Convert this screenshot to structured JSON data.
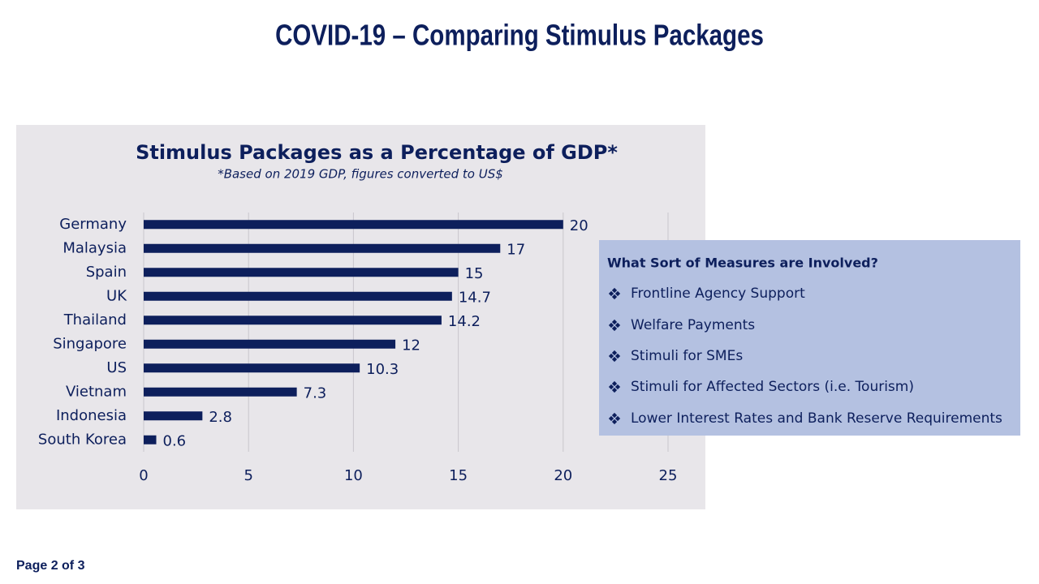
{
  "slide": {
    "title": "COVID-19 – Comparing Stimulus Packages",
    "page": "Page 2 of 3"
  },
  "chart_data": {
    "type": "bar",
    "orientation": "horizontal",
    "title": "Stimulus Packages as a Percentage of GDP*",
    "subtitle": "*Based on 2019 GDP, figures converted to US$",
    "categories": [
      "Germany",
      "Malaysia",
      "Spain",
      "UK",
      "Thailand",
      "Singapore",
      "US",
      "Vietnam",
      "Indonesia",
      "South Korea"
    ],
    "values": [
      20,
      17,
      15,
      14.7,
      14.2,
      12,
      10.3,
      7.3,
      2.8,
      0.6
    ],
    "color": "#0d1f5c",
    "xlim": [
      0,
      25
    ],
    "xticks": [
      0,
      5,
      10,
      15,
      20,
      25
    ],
    "grid": true
  },
  "info_box": {
    "title": "What Sort of Measures are Involved?",
    "items": [
      "Frontline Agency Support",
      "Welfare Payments",
      "Stimuli for SMEs",
      "Stimuli for Affected Sectors (i.e. Tourism)",
      "Lower Interest Rates and Bank Reserve Requirements"
    ]
  }
}
